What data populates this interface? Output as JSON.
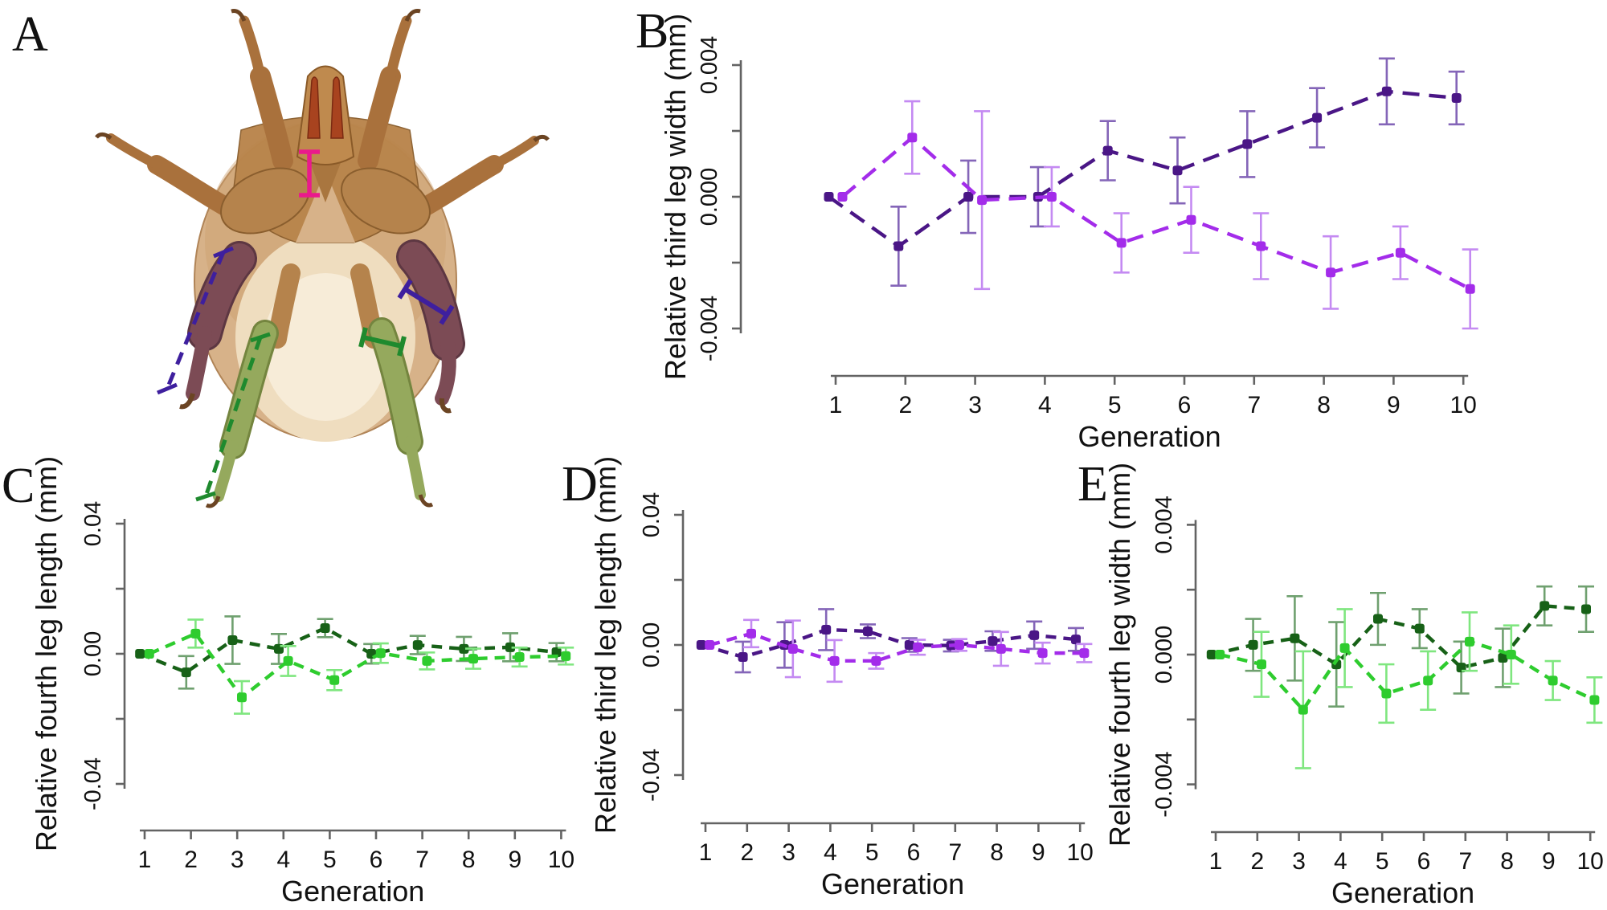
{
  "figure": {
    "background": "#ffffff",
    "panels": [
      {
        "id": "A",
        "letter": "A"
      },
      {
        "id": "B",
        "letter": "B"
      },
      {
        "id": "C",
        "letter": "C"
      },
      {
        "id": "D",
        "letter": "D"
      },
      {
        "id": "E",
        "letter": "E"
      }
    ]
  },
  "panel_a": {
    "letter": "A",
    "subject": "mite ventral illustration with measured traits highlighted",
    "highlight_colors": {
      "third_leg": "#7C4B55",
      "fourth_leg": "#95A95D",
      "body": "#D7B289",
      "legs": "#A9713C",
      "chelicerae": "#A8431F"
    },
    "measurements": [
      {
        "name": "gnathosoma-width-bar",
        "style": "solid",
        "color": "#EA1A8C"
      },
      {
        "name": "third-leg-length-bracket",
        "style": "dashed",
        "color": "#3E1F9E"
      },
      {
        "name": "third-leg-width-bar",
        "style": "solid",
        "color": "#3E1F9E"
      },
      {
        "name": "fourth-leg-length-bracket",
        "style": "dashed",
        "color": "#1F8A2E"
      },
      {
        "name": "fourth-leg-width-bar",
        "style": "solid",
        "color": "#1F8A2E"
      }
    ]
  },
  "chart_data": [
    {
      "panel": "B",
      "type": "line",
      "ylabel": "Relative third leg width (mm)",
      "xlabel": "Generation",
      "x": [
        1,
        2,
        3,
        4,
        5,
        6,
        7,
        8,
        9,
        10
      ],
      "xtick_labels": [
        "1",
        "2",
        "3",
        "4",
        "5",
        "6",
        "7",
        "8",
        "9",
        "10"
      ],
      "ylim": [
        -0.0055,
        0.0045
      ],
      "yticks": [
        0.004,
        0.002,
        0,
        -0.002,
        -0.004
      ],
      "ytick_labels": [
        "0.004",
        "",
        "0.000",
        "",
        "-0.004"
      ],
      "grid": false,
      "legend": "none",
      "series": [
        {
          "name": "up-selected line (dark purple)",
          "color": "#4A1686",
          "error_color": "#8465B8",
          "values": [
            0,
            -0.0015,
            0.0,
            0.0,
            0.0014,
            0.0008,
            0.0016,
            0.0024,
            0.0032,
            0.003
          ],
          "errors": [
            0,
            0.0012,
            0.0011,
            0.0009,
            0.0009,
            0.001,
            0.001,
            0.0009,
            0.001,
            0.0008
          ]
        },
        {
          "name": "down-selected line (violet)",
          "color": "#A32CEA",
          "error_color": "#C48AF2",
          "values": [
            0,
            0.0018,
            -0.0001,
            0.0,
            -0.0014,
            -0.0007,
            -0.0015,
            -0.0023,
            -0.0017,
            -0.0028
          ],
          "errors": [
            0,
            0.0011,
            0.0027,
            0.0009,
            0.0009,
            0.001,
            0.001,
            0.0011,
            0.0008,
            0.0012
          ]
        }
      ]
    },
    {
      "panel": "C",
      "type": "line",
      "ylabel": "Relative fourth leg length (mm)",
      "xlabel": "Generation",
      "x": [
        1,
        2,
        3,
        4,
        5,
        6,
        7,
        8,
        9,
        10
      ],
      "xtick_labels": [
        "1",
        "2",
        "3",
        "4",
        "5",
        "6",
        "7",
        "8",
        "9",
        "10"
      ],
      "ylim": [
        -0.054,
        0.046
      ],
      "yticks": [
        0.04,
        0.02,
        0,
        -0.02,
        -0.04
      ],
      "ytick_labels": [
        "0.04",
        "",
        "0.00",
        "",
        "-0.04"
      ],
      "grid": false,
      "legend": "none",
      "series": [
        {
          "name": "dark green line",
          "color": "#176117",
          "error_color": "#6FA06F",
          "values": [
            0,
            -0.0057,
            0.0042,
            0.0015,
            0.0079,
            0.0,
            0.0027,
            0.0015,
            0.002,
            0.0005
          ],
          "errors": [
            0,
            0.005,
            0.0073,
            0.0046,
            0.0028,
            0.003,
            0.0028,
            0.0037,
            0.0043,
            0.0028
          ]
        },
        {
          "name": "light green line",
          "color": "#2ECC2E",
          "error_color": "#7FE67F",
          "values": [
            0,
            0.0062,
            -0.0134,
            -0.0022,
            -0.0081,
            0.0002,
            -0.0022,
            -0.0015,
            -0.001,
            -0.0007
          ],
          "errors": [
            0,
            0.0043,
            0.005,
            0.0046,
            0.0031,
            0.003,
            0.0026,
            0.0031,
            0.0029,
            0.0026
          ]
        }
      ]
    },
    {
      "panel": "D",
      "type": "line",
      "ylabel": "Relative third leg length (mm)",
      "xlabel": "Generation",
      "x": [
        1,
        2,
        3,
        4,
        5,
        6,
        7,
        8,
        9,
        10
      ],
      "xtick_labels": [
        "1",
        "2",
        "3",
        "4",
        "5",
        "6",
        "7",
        "8",
        "9",
        "10"
      ],
      "ylim": [
        -0.054,
        0.046
      ],
      "yticks": [
        0.04,
        0.02,
        0,
        -0.02,
        -0.04
      ],
      "ytick_labels": [
        "0.04",
        "",
        "0.00",
        "",
        "-0.04"
      ],
      "grid": false,
      "legend": "none",
      "series": [
        {
          "name": "dark purple line",
          "color": "#4A1686",
          "error_color": "#8465B8",
          "values": [
            0,
            -0.0037,
            0.0,
            0.0047,
            0.0042,
            0.0,
            -0.0002,
            0.0012,
            0.003,
            0.0017
          ],
          "errors": [
            0,
            0.0047,
            0.007,
            0.0063,
            0.0021,
            0.0021,
            0.0018,
            0.003,
            0.0042,
            0.0035
          ]
        },
        {
          "name": "violet line",
          "color": "#A32CEA",
          "error_color": "#C48AF2",
          "values": [
            0,
            0.0035,
            -0.0012,
            -0.0049,
            -0.0049,
            -0.0007,
            0.0,
            -0.0012,
            -0.0025,
            -0.0025
          ],
          "errors": [
            0,
            0.0042,
            0.0087,
            0.0064,
            0.0024,
            0.0023,
            0.0018,
            0.0052,
            0.0032,
            0.0028
          ]
        }
      ]
    },
    {
      "panel": "E",
      "type": "line",
      "ylabel": "Relative fourth leg width (mm)",
      "xlabel": "Generation",
      "x": [
        1,
        2,
        3,
        4,
        5,
        6,
        7,
        8,
        9,
        10
      ],
      "xtick_labels": [
        "1",
        "2",
        "3",
        "4",
        "5",
        "6",
        "7",
        "8",
        "9",
        "10"
      ],
      "ylim": [
        -0.0055,
        0.0045
      ],
      "yticks": [
        0.004,
        0.002,
        0,
        -0.002,
        -0.004
      ],
      "ytick_labels": [
        "0.004",
        "",
        "0.000",
        "",
        "-0.004"
      ],
      "grid": false,
      "legend": "none",
      "series": [
        {
          "name": "dark green line",
          "color": "#176117",
          "error_color": "#6FA06F",
          "values": [
            0,
            0.0003,
            0.0005,
            -0.0003,
            0.0011,
            0.0008,
            -0.0004,
            -0.0001,
            0.0015,
            0.0014
          ],
          "errors": [
            0,
            0.0008,
            0.0013,
            0.0013,
            0.0008,
            0.0006,
            0.0008,
            0.0009,
            0.0006,
            0.0007
          ]
        },
        {
          "name": "light green line",
          "color": "#2ECC2E",
          "error_color": "#7FE67F",
          "values": [
            0,
            -0.0003,
            -0.0017,
            0.0002,
            -0.0012,
            -0.0008,
            0.0004,
            0.0,
            -0.0008,
            -0.0014
          ],
          "errors": [
            0,
            0.001,
            0.0018,
            0.0012,
            0.0009,
            0.0009,
            0.0009,
            0.0009,
            0.0006,
            0.0007
          ]
        }
      ]
    }
  ]
}
